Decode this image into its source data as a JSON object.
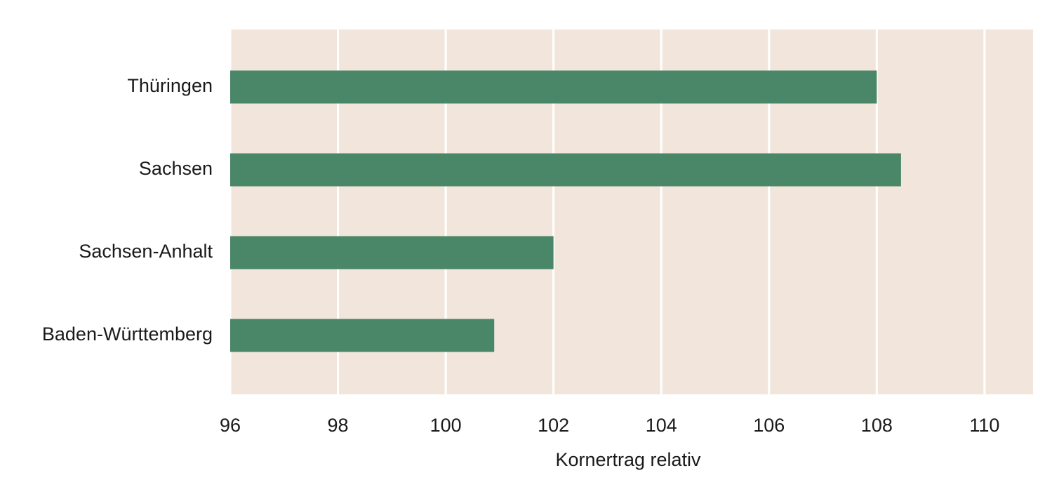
{
  "chart_data": {
    "type": "bar",
    "orientation": "horizontal",
    "xlabel": "Kornertrag relativ",
    "categories": [
      "Thüringen",
      "Sachsen",
      "Sachsen-Anhalt",
      "Baden-Württemberg"
    ],
    "values": [
      108.0,
      108.45,
      102.0,
      100.9
    ],
    "color": "#4a8768",
    "background": "#f2e6dc",
    "xlim": [
      96,
      110.9
    ],
    "xticks": [
      96,
      98,
      100,
      102,
      104,
      106,
      108,
      110
    ],
    "grid": true
  }
}
